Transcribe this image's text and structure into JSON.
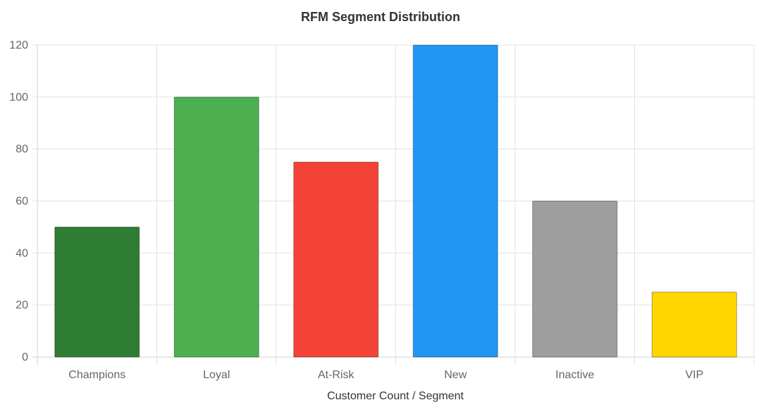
{
  "chart_data": {
    "type": "bar",
    "title": "RFM Segment Distribution",
    "xlabel": "Customer Count / Segment",
    "ylabel": "",
    "categories": [
      "Champions",
      "Loyal",
      "At-Risk",
      "New",
      "Inactive",
      "VIP"
    ],
    "values": [
      50,
      100,
      75,
      120,
      60,
      25
    ],
    "colors": [
      "#2e7d32",
      "#4caf50",
      "#f44336",
      "#2196f3",
      "#9e9e9e",
      "#ffd600"
    ],
    "ylim": [
      0,
      120
    ],
    "yticks": [
      0,
      20,
      40,
      60,
      80,
      100,
      120
    ],
    "grid": true,
    "legend": "none"
  }
}
